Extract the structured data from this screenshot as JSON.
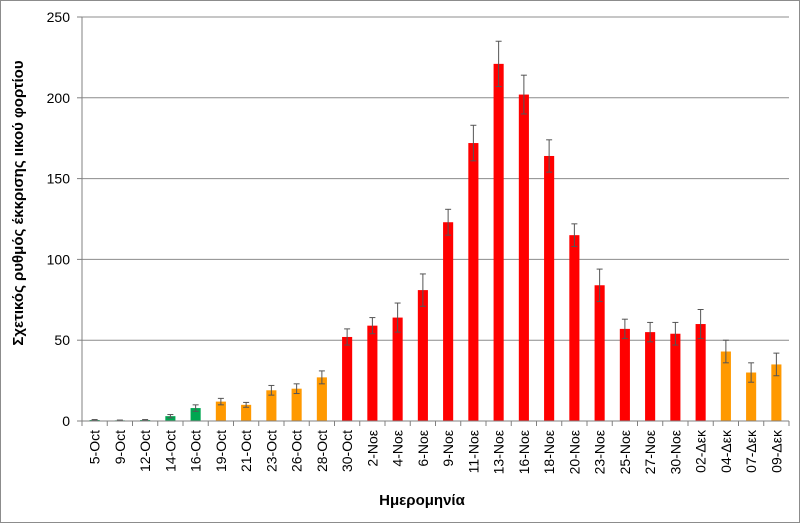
{
  "chart_data": {
    "type": "bar",
    "xlabel": "Ημερομηνία",
    "ylabel": "Σχετικός ρυθμός έκκρισης ιικού φορτίου",
    "ylim": [
      0,
      250
    ],
    "yticks": [
      0,
      50,
      100,
      150,
      200,
      250
    ],
    "grid": true,
    "categories": [
      "5-Oct",
      "9-Oct",
      "12-Oct",
      "14-Oct",
      "16-Oct",
      "19-Oct",
      "21-Oct",
      "23-Oct",
      "26-Oct",
      "28-Oct",
      "30-Oct",
      "2-Νοε",
      "4-Νοε",
      "6-Νοε",
      "9-Νοε",
      "11-Νοε",
      "13-Νοε",
      "16-Νοε",
      "18-Νοε",
      "20-Νοε",
      "23-Νοε",
      "25-Νοε",
      "27-Νοε",
      "30-Νοε",
      "02-Δεκ",
      "04-Δεκ",
      "07-Δεκ",
      "09-Δεκ"
    ],
    "values": [
      0.6,
      0.4,
      0.6,
      3,
      8,
      12,
      10,
      19,
      20,
      27,
      52,
      59,
      64,
      81,
      123,
      172,
      221,
      202,
      164,
      115,
      84,
      57,
      55,
      54,
      60,
      43,
      30,
      35
    ],
    "errors": [
      0.3,
      0.2,
      0.3,
      1,
      2,
      2,
      1.5,
      3,
      3,
      4,
      5,
      5,
      9,
      10,
      8,
      11,
      14,
      12,
      10,
      7,
      10,
      6,
      6,
      7,
      9,
      7,
      6,
      7
    ],
    "bar_colors": [
      "#00a651",
      "#00a651",
      "#00a651",
      "#00a651",
      "#00a651",
      "#ff9900",
      "#ff9900",
      "#ff9900",
      "#ff9900",
      "#ff9900",
      "#ff0000",
      "#ff0000",
      "#ff0000",
      "#ff0000",
      "#ff0000",
      "#ff0000",
      "#ff0000",
      "#ff0000",
      "#ff0000",
      "#ff0000",
      "#ff0000",
      "#ff0000",
      "#ff0000",
      "#ff0000",
      "#ff0000",
      "#ff9900",
      "#ff9900",
      "#ff9900"
    ]
  }
}
